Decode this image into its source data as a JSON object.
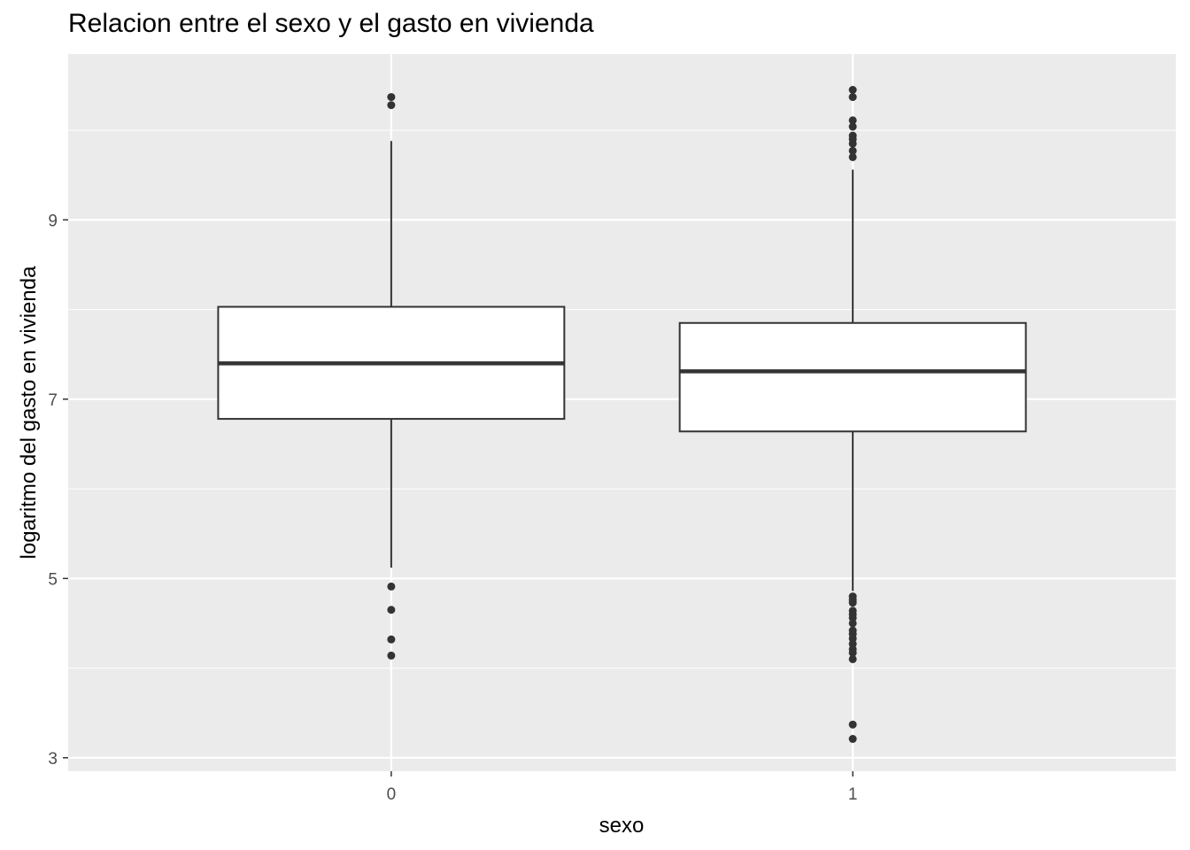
{
  "chart_data": {
    "type": "boxplot",
    "title": "Relacion entre el sexo y el gasto en vivienda",
    "xlabel": "sexo",
    "ylabel": "logaritmo del gasto en vivienda",
    "categories": [
      "0",
      "1"
    ],
    "ylim": [
      2.85,
      10.85
    ],
    "y_ticks": [
      3,
      5,
      7,
      9
    ],
    "y_tick_labels": [
      "3",
      "5",
      "7",
      "9"
    ],
    "grid": true,
    "colors": {
      "panel_background": "#ebebeb",
      "grid": "#ffffff",
      "box_fill": "#ffffff",
      "box_line": "#333333",
      "outlier": "#333333"
    },
    "boxes": [
      {
        "category": "0",
        "q1": 6.78,
        "median": 7.4,
        "q3": 8.03,
        "whisker_low": 5.12,
        "whisker_high": 9.88,
        "outliers": [
          10.37,
          10.28,
          4.91,
          4.65,
          4.32,
          4.14
        ]
      },
      {
        "category": "1",
        "q1": 6.64,
        "median": 7.31,
        "q3": 7.85,
        "whisker_low": 4.86,
        "whisker_high": 9.56,
        "outliers": [
          10.45,
          10.37,
          10.11,
          10.04,
          9.94,
          9.9,
          9.85,
          9.77,
          9.7,
          4.8,
          4.76,
          4.73,
          4.64,
          4.6,
          4.56,
          4.5,
          4.42,
          4.38,
          4.33,
          4.27,
          4.21,
          4.17,
          4.1,
          3.37,
          3.21
        ]
      }
    ]
  }
}
